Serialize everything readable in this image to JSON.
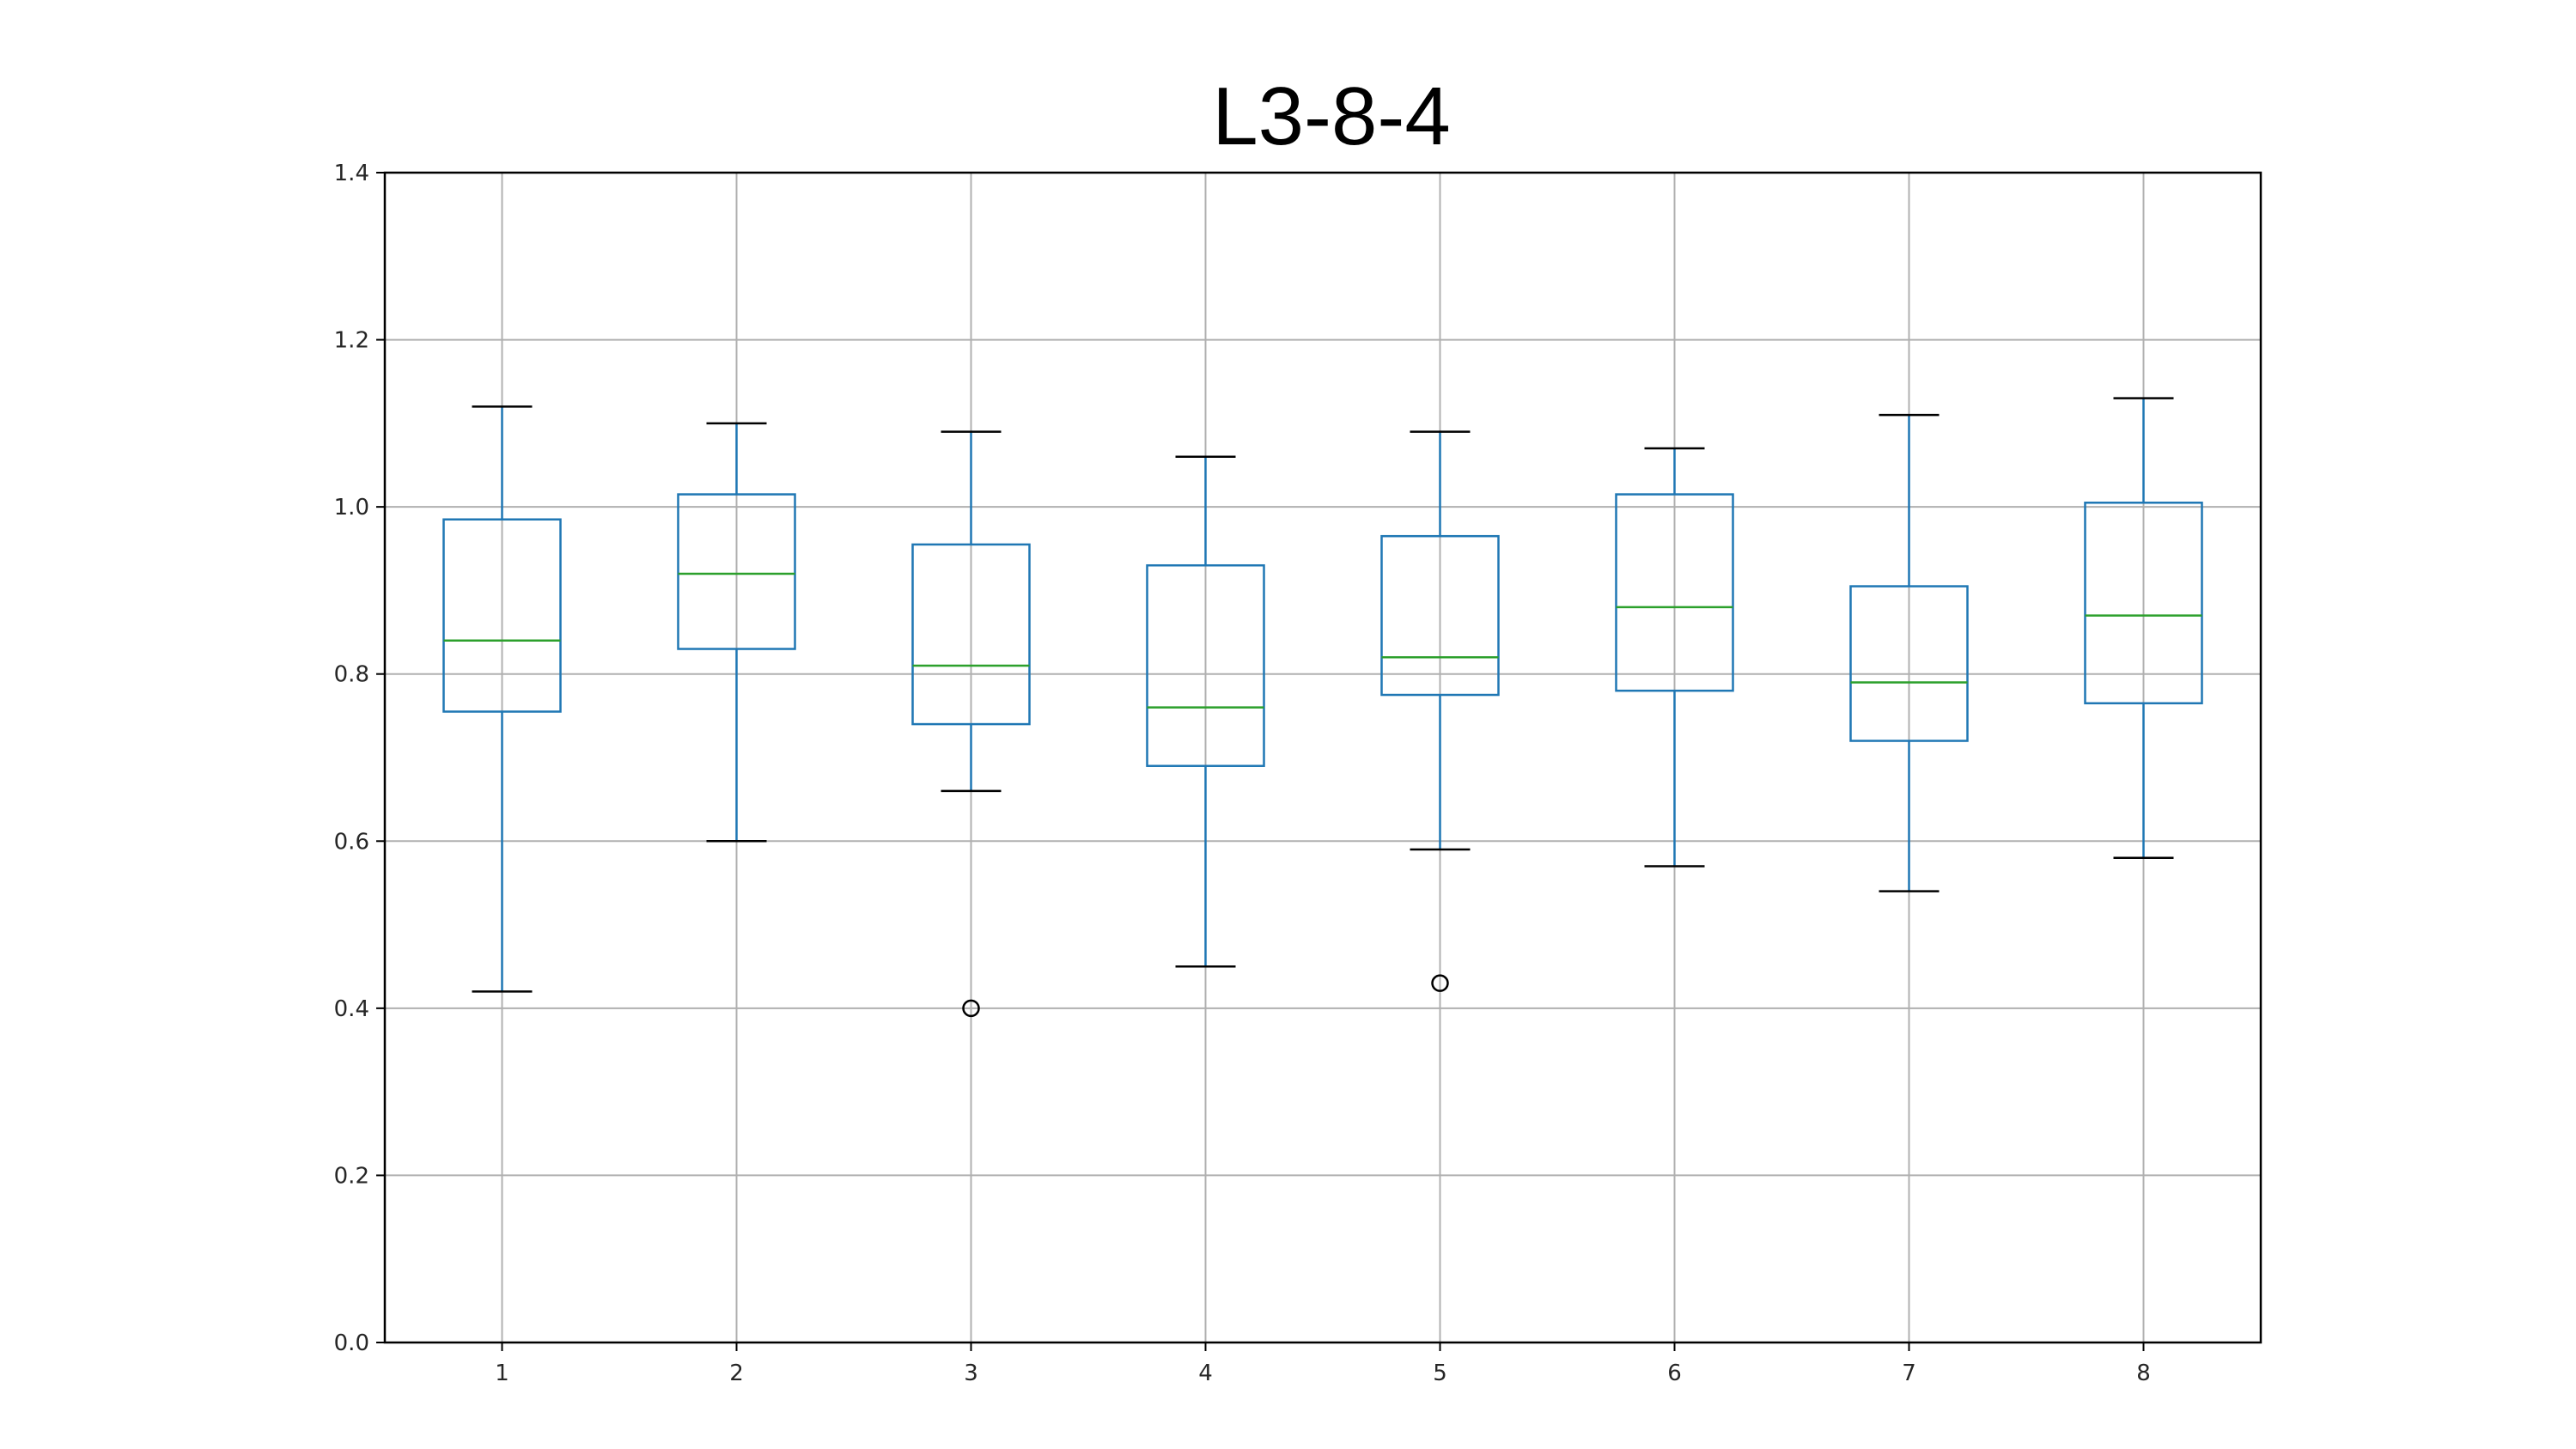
{
  "chart_data": {
    "type": "box",
    "title": "L3-8-4",
    "xlabel": "",
    "ylabel": "",
    "categories": [
      "1",
      "2",
      "3",
      "4",
      "5",
      "6",
      "7",
      "8"
    ],
    "ylim": [
      0.0,
      1.4
    ],
    "yticks": [
      "0.0",
      "0.2",
      "0.4",
      "0.6",
      "0.8",
      "1.0",
      "1.2",
      "1.4"
    ],
    "grid": true,
    "legend": "none",
    "boxes": [
      {
        "label": "1",
        "whisker_low": 0.42,
        "q1": 0.755,
        "median": 0.84,
        "q3": 0.985,
        "whisker_high": 1.12,
        "outliers": []
      },
      {
        "label": "2",
        "whisker_low": 0.6,
        "q1": 0.83,
        "median": 0.92,
        "q3": 1.015,
        "whisker_high": 1.1,
        "outliers": []
      },
      {
        "label": "3",
        "whisker_low": 0.66,
        "q1": 0.74,
        "median": 0.81,
        "q3": 0.955,
        "whisker_high": 1.09,
        "outliers": [
          0.4
        ]
      },
      {
        "label": "4",
        "whisker_low": 0.45,
        "q1": 0.69,
        "median": 0.76,
        "q3": 0.93,
        "whisker_high": 1.06,
        "outliers": []
      },
      {
        "label": "5",
        "whisker_low": 0.59,
        "q1": 0.775,
        "median": 0.82,
        "q3": 0.965,
        "whisker_high": 1.09,
        "outliers": [
          0.43
        ]
      },
      {
        "label": "6",
        "whisker_low": 0.57,
        "q1": 0.78,
        "median": 0.88,
        "q3": 1.015,
        "whisker_high": 1.07,
        "outliers": []
      },
      {
        "label": "7",
        "whisker_low": 0.54,
        "q1": 0.72,
        "median": 0.79,
        "q3": 0.905,
        "whisker_high": 1.11,
        "outliers": []
      },
      {
        "label": "8",
        "whisker_low": 0.58,
        "q1": 0.765,
        "median": 0.87,
        "q3": 1.005,
        "whisker_high": 1.13,
        "outliers": []
      }
    ],
    "colors": {
      "box": "#1f77b4",
      "median": "#2ca02c",
      "cap": "#000000",
      "grid": "#b0b0b0",
      "axes": "#000000",
      "outlier": "#000000"
    }
  }
}
